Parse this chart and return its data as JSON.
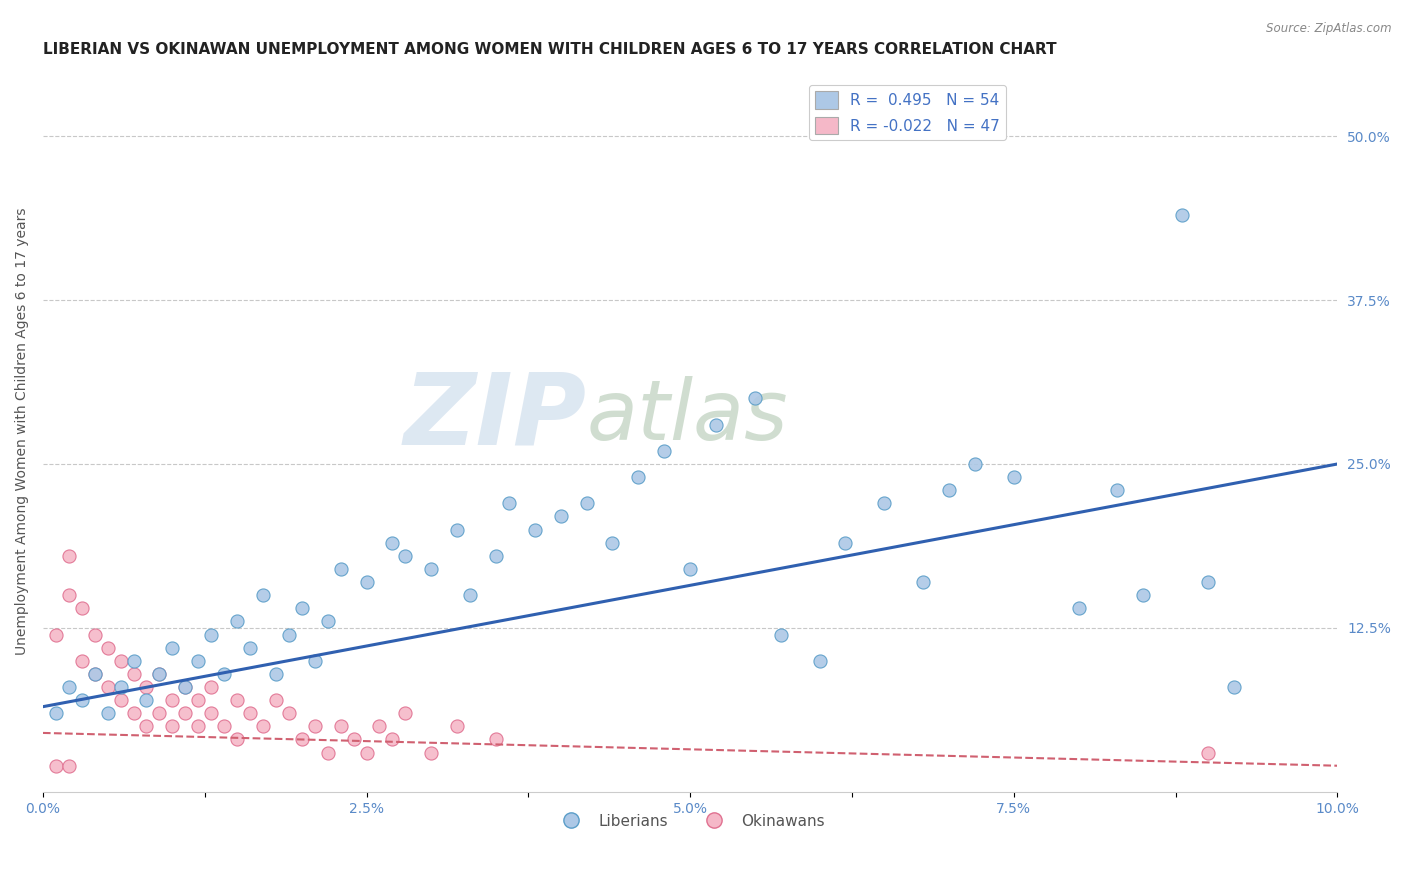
{
  "title": "LIBERIAN VS OKINAWAN UNEMPLOYMENT AMONG WOMEN WITH CHILDREN AGES 6 TO 17 YEARS CORRELATION CHART",
  "source_text": "Source: ZipAtlas.com",
  "ylabel": "Unemployment Among Women with Children Ages 6 to 17 years",
  "xlim": [
    0.0,
    0.1
  ],
  "ylim": [
    0.0,
    0.55
  ],
  "xtick_labels": [
    "0.0%",
    "",
    "2.5%",
    "",
    "5.0%",
    "",
    "7.5%",
    "",
    "10.0%"
  ],
  "xtick_positions": [
    0.0,
    0.0125,
    0.025,
    0.0375,
    0.05,
    0.0625,
    0.075,
    0.0875,
    0.1
  ],
  "ytick_labels": [
    "12.5%",
    "25.0%",
    "37.5%",
    "50.0%"
  ],
  "ytick_positions": [
    0.125,
    0.25,
    0.375,
    0.5
  ],
  "liberian_color": "#adc8e6",
  "liberian_edge_color": "#5a9dc8",
  "okinawan_color": "#f5b8c8",
  "okinawan_edge_color": "#e07090",
  "line_liberian_color": "#3060b0",
  "line_okinawan_color": "#d06070",
  "R_liberian": 0.495,
  "N_liberian": 54,
  "R_okinawan": -0.022,
  "N_okinawan": 47,
  "legend_liberian_label": "Liberians",
  "legend_okinawan_label": "Okinawans",
  "watermark_zip": "ZIP",
  "watermark_atlas": "atlas",
  "background_color": "#ffffff",
  "grid_color": "#c8c8c8",
  "title_fontsize": 11,
  "axis_label_fontsize": 10,
  "tick_fontsize": 10,
  "marker_size": 9,
  "lib_line_x0": 0.0,
  "lib_line_y0": 0.065,
  "lib_line_x1": 0.1,
  "lib_line_y1": 0.25,
  "okin_line_x0": 0.0,
  "okin_line_y0": 0.045,
  "okin_line_x1": 0.1,
  "okin_line_y1": 0.02,
  "lib_x": [
    0.001,
    0.002,
    0.003,
    0.004,
    0.005,
    0.006,
    0.007,
    0.008,
    0.009,
    0.01,
    0.011,
    0.012,
    0.013,
    0.014,
    0.015,
    0.016,
    0.017,
    0.018,
    0.019,
    0.02,
    0.021,
    0.022,
    0.023,
    0.025,
    0.027,
    0.028,
    0.03,
    0.032,
    0.033,
    0.035,
    0.036,
    0.038,
    0.04,
    0.042,
    0.044,
    0.046,
    0.048,
    0.05,
    0.052,
    0.055,
    0.057,
    0.06,
    0.062,
    0.065,
    0.068,
    0.07,
    0.072,
    0.075,
    0.08,
    0.083,
    0.085,
    0.088,
    0.09,
    0.092
  ],
  "lib_y": [
    0.06,
    0.08,
    0.07,
    0.09,
    0.06,
    0.08,
    0.1,
    0.07,
    0.09,
    0.11,
    0.08,
    0.1,
    0.12,
    0.09,
    0.13,
    0.11,
    0.15,
    0.09,
    0.12,
    0.14,
    0.1,
    0.13,
    0.17,
    0.16,
    0.19,
    0.18,
    0.17,
    0.2,
    0.15,
    0.18,
    0.22,
    0.2,
    0.21,
    0.22,
    0.19,
    0.24,
    0.26,
    0.17,
    0.28,
    0.3,
    0.12,
    0.1,
    0.19,
    0.22,
    0.16,
    0.23,
    0.25,
    0.24,
    0.14,
    0.23,
    0.15,
    0.44,
    0.16,
    0.08
  ],
  "okin_x": [
    0.001,
    0.002,
    0.002,
    0.003,
    0.003,
    0.004,
    0.004,
    0.005,
    0.005,
    0.006,
    0.006,
    0.007,
    0.007,
    0.008,
    0.008,
    0.009,
    0.009,
    0.01,
    0.01,
    0.011,
    0.011,
    0.012,
    0.012,
    0.013,
    0.013,
    0.014,
    0.015,
    0.015,
    0.016,
    0.017,
    0.018,
    0.019,
    0.02,
    0.021,
    0.022,
    0.023,
    0.024,
    0.025,
    0.026,
    0.027,
    0.028,
    0.03,
    0.032,
    0.035,
    0.001,
    0.09,
    0.002
  ],
  "okin_y": [
    0.12,
    0.15,
    0.18,
    0.1,
    0.14,
    0.09,
    0.12,
    0.08,
    0.11,
    0.07,
    0.1,
    0.06,
    0.09,
    0.05,
    0.08,
    0.06,
    0.09,
    0.07,
    0.05,
    0.08,
    0.06,
    0.07,
    0.05,
    0.06,
    0.08,
    0.05,
    0.07,
    0.04,
    0.06,
    0.05,
    0.07,
    0.06,
    0.04,
    0.05,
    0.03,
    0.05,
    0.04,
    0.03,
    0.05,
    0.04,
    0.06,
    0.03,
    0.05,
    0.04,
    0.02,
    0.03,
    0.02
  ]
}
